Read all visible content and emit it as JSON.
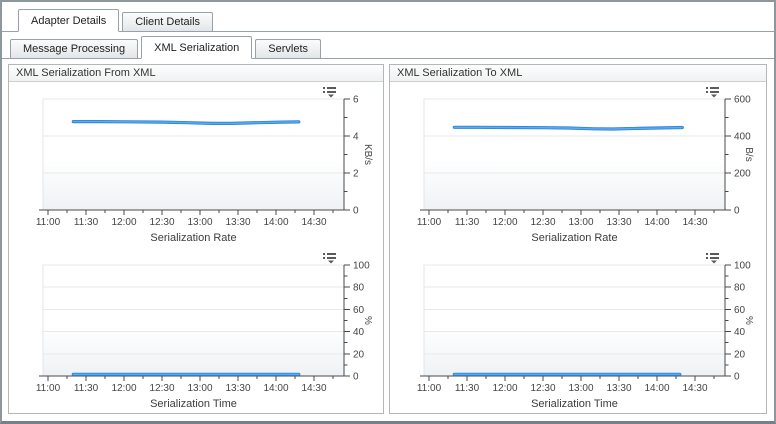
{
  "colors": {
    "line_main": "#2e86d9",
    "line_highlight": "#5caaf0",
    "axis": "#4a4a4a",
    "grid": "#e6e9ec",
    "plot_bg_top": "#ffffff",
    "plot_bg_bottom": "#eff2f5",
    "label": "#454545",
    "tab_border": "#98a1a9",
    "icon": "#5a5a5a"
  },
  "tabs": {
    "primary": [
      {
        "label": "Adapter Details",
        "active": true
      },
      {
        "label": "Client Details",
        "active": false
      }
    ],
    "secondary": [
      {
        "label": "Message Processing",
        "active": false
      },
      {
        "label": "XML Serialization",
        "active": true
      },
      {
        "label": "Servlets",
        "active": false
      }
    ]
  },
  "panels": [
    {
      "title": "XML Serialization From XML",
      "charts": [
        {
          "type": "line",
          "title": "Serialization Rate",
          "unit": "KB/s",
          "ylim": [
            0,
            6
          ],
          "y_major": 2,
          "y_minor": 1,
          "x_labels": [
            "11:00",
            "11:30",
            "12:00",
            "12:30",
            "13:00",
            "13:30",
            "14:00",
            "14:30"
          ],
          "points": [
            [
              "11:20",
              4.78
            ],
            [
              "11:40",
              4.78
            ],
            [
              "12:00",
              4.77
            ],
            [
              "12:30",
              4.75
            ],
            [
              "12:50",
              4.72
            ],
            [
              "13:10",
              4.68
            ],
            [
              "13:25",
              4.68
            ],
            [
              "13:45",
              4.72
            ],
            [
              "14:05",
              4.75
            ],
            [
              "14:18",
              4.76
            ]
          ]
        },
        {
          "type": "line",
          "title": "Serialization Time",
          "unit": "%",
          "ylim": [
            0,
            100
          ],
          "y_major": 20,
          "y_minor": 10,
          "x_labels": [
            "11:00",
            "11:30",
            "12:00",
            "12:30",
            "13:00",
            "13:30",
            "14:00",
            "14:30"
          ],
          "points": [
            [
              "11:20",
              1.5
            ],
            [
              "12:00",
              1.5
            ],
            [
              "12:30",
              1.5
            ],
            [
              "13:00",
              1.5
            ],
            [
              "13:30",
              1.5
            ],
            [
              "14:00",
              1.5
            ],
            [
              "14:18",
              1.5
            ]
          ]
        }
      ]
    },
    {
      "title": "XML Serialization To XML",
      "charts": [
        {
          "type": "line",
          "title": "Serialization Rate",
          "unit": "B/s",
          "ylim": [
            0,
            600
          ],
          "y_major": 200,
          "y_minor": 100,
          "x_labels": [
            "11:00",
            "11:30",
            "12:00",
            "12:30",
            "13:00",
            "13:30",
            "14:00",
            "14:30"
          ],
          "points": [
            [
              "11:20",
              447
            ],
            [
              "11:40",
              447
            ],
            [
              "12:00",
              446
            ],
            [
              "12:30",
              445
            ],
            [
              "12:50",
              443
            ],
            [
              "13:10",
              439
            ],
            [
              "13:25",
              438
            ],
            [
              "13:45",
              441
            ],
            [
              "14:05",
              444
            ],
            [
              "14:20",
              446
            ]
          ]
        },
        {
          "type": "line",
          "title": "Serialization Time",
          "unit": "%",
          "ylim": [
            0,
            100
          ],
          "y_major": 20,
          "y_minor": 10,
          "x_labels": [
            "11:00",
            "11:30",
            "12:00",
            "12:30",
            "13:00",
            "13:30",
            "14:00",
            "14:30"
          ],
          "points": [
            [
              "11:20",
              1.5
            ],
            [
              "12:00",
              1.5
            ],
            [
              "12:30",
              1.5
            ],
            [
              "13:00",
              1.5
            ],
            [
              "13:30",
              1.5
            ],
            [
              "14:00",
              1.5
            ],
            [
              "14:18",
              1.5
            ]
          ]
        }
      ]
    }
  ]
}
